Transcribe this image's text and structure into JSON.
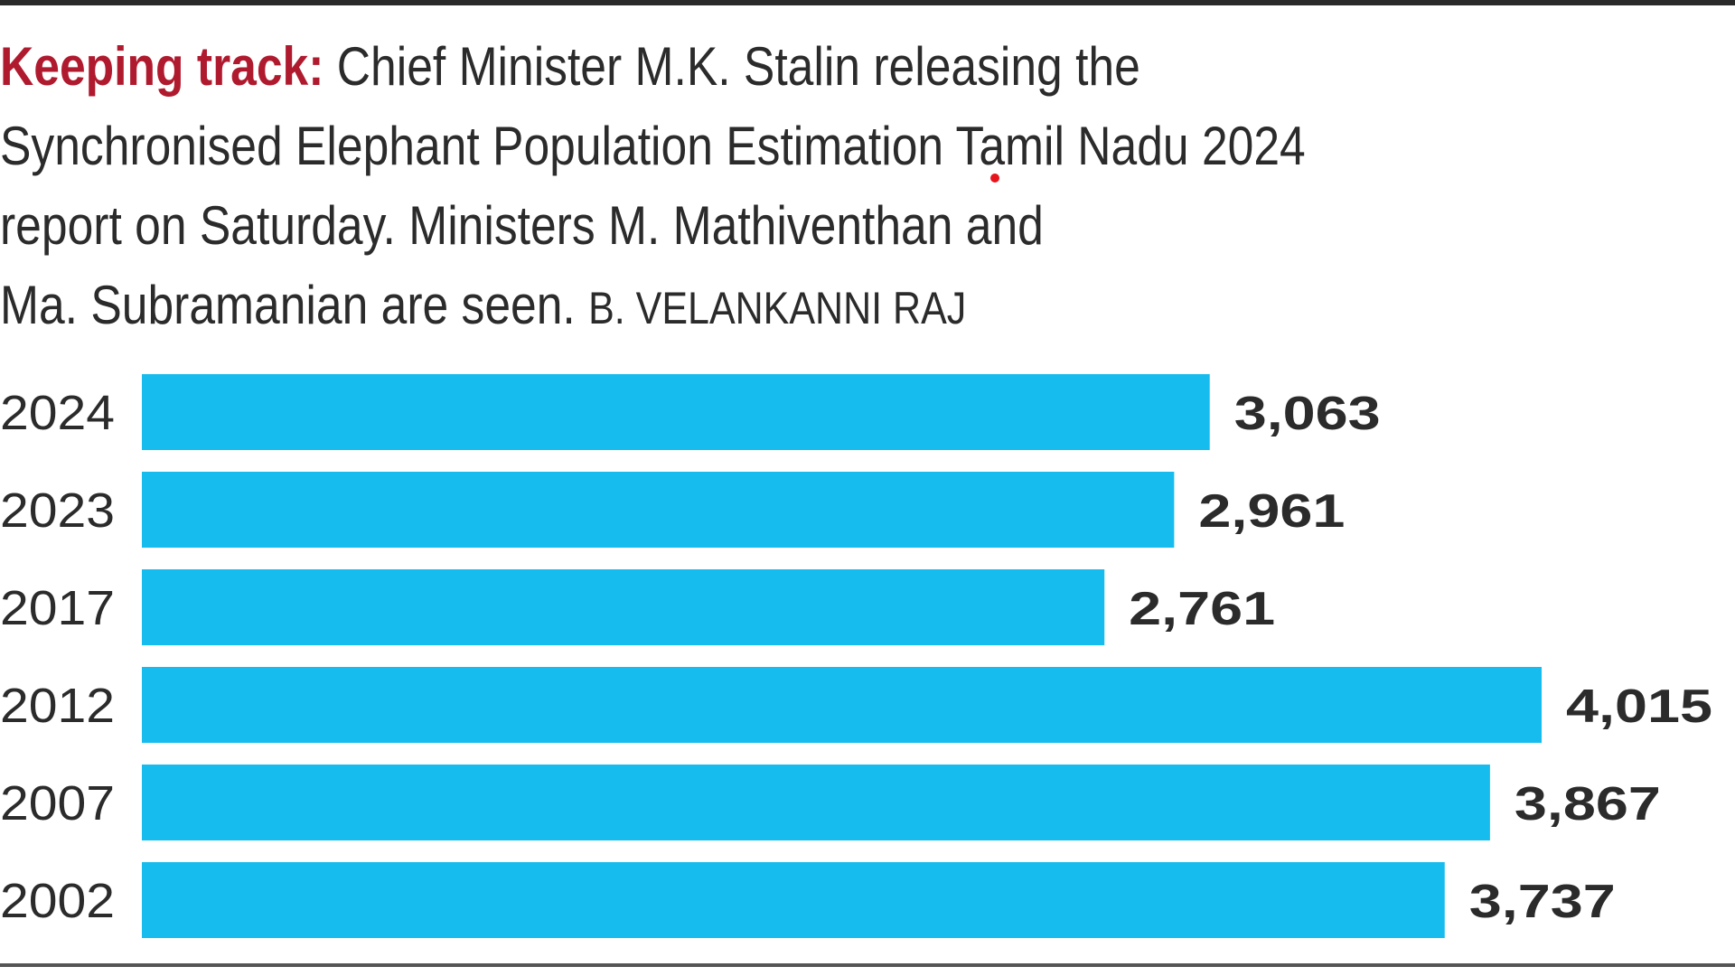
{
  "caption": {
    "lead": "Keeping track:",
    "line1": " Chief Minister M.K. Stalin releasing the",
    "line2": "Synchronised Elephant Population Estimation Tamil Nadu 2024",
    "line3": "report on Saturday. Ministers M. Mathiventhan and",
    "line4": "Ma. Subramanian are seen. ",
    "credit": "B. VELANKANNI RAJ"
  },
  "colors": {
    "bar": "#17bcee",
    "lead": "#b01a2e",
    "text": "#2b2b2b"
  },
  "chart_data": {
    "type": "bar",
    "orientation": "horizontal",
    "categories": [
      "2024",
      "2023",
      "2017",
      "2012",
      "2007",
      "2002"
    ],
    "values": [
      3063,
      2961,
      2761,
      4015,
      3867,
      3737
    ],
    "value_labels": [
      "3,063",
      "2,961",
      "2,761",
      "4,015",
      "3,867",
      "3,737"
    ],
    "xlim": [
      0,
      4015
    ],
    "grid": false
  }
}
